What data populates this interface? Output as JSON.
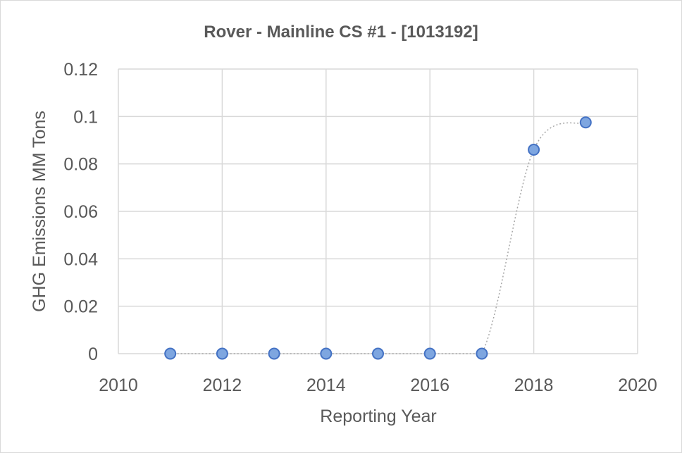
{
  "chart_data": {
    "type": "scatter",
    "title": "Rover - Mainline CS #1 - [1013192]",
    "xlabel": "Reporting Year",
    "ylabel": "GHG Emissions MM Tons",
    "xlim": [
      2010,
      2020
    ],
    "ylim": [
      0,
      0.12
    ],
    "x_ticks": [
      "2010",
      "2012",
      "2014",
      "2016",
      "2018",
      "2020"
    ],
    "y_ticks": [
      "0",
      "0.02",
      "0.04",
      "0.06",
      "0.08",
      "0.1",
      "0.12"
    ],
    "grid": true,
    "line_style": "dotted smoothed",
    "series": [
      {
        "x": [
          2011,
          2012,
          2013,
          2014,
          2015,
          2016,
          2017,
          2018,
          2019
        ],
        "y": [
          0,
          0,
          0,
          0,
          0,
          0,
          0,
          0.086,
          0.0975
        ]
      }
    ],
    "colors": {
      "marker_fill": "#7ea6e0",
      "marker_stroke": "#4472c4",
      "line": "#a6a6a6",
      "grid": "#d9d9d9",
      "text": "#595959"
    }
  }
}
